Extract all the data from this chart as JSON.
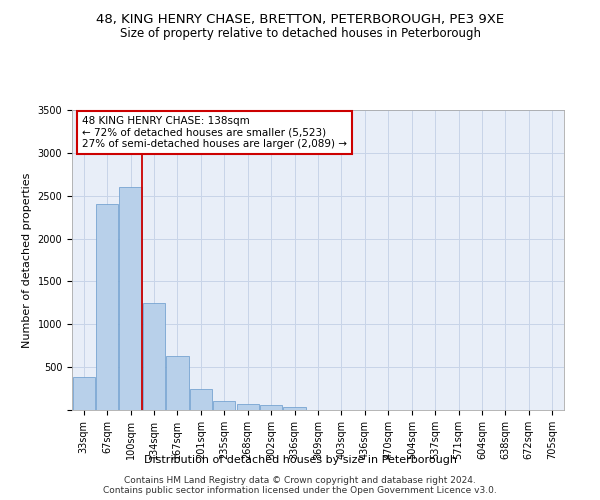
{
  "title_line1": "48, KING HENRY CHASE, BRETTON, PETERBOROUGH, PE3 9XE",
  "title_line2": "Size of property relative to detached houses in Peterborough",
  "xlabel": "Distribution of detached houses by size in Peterborough",
  "ylabel": "Number of detached properties",
  "categories": [
    "33sqm",
    "67sqm",
    "100sqm",
    "134sqm",
    "167sqm",
    "201sqm",
    "235sqm",
    "268sqm",
    "302sqm",
    "336sqm",
    "369sqm",
    "403sqm",
    "436sqm",
    "470sqm",
    "504sqm",
    "537sqm",
    "571sqm",
    "604sqm",
    "638sqm",
    "672sqm",
    "705sqm"
  ],
  "values": [
    380,
    2400,
    2600,
    1250,
    630,
    250,
    100,
    65,
    55,
    40,
    0,
    0,
    0,
    0,
    0,
    0,
    0,
    0,
    0,
    0,
    0
  ],
  "bar_color": "#b8d0ea",
  "bar_edge_color": "#6699cc",
  "vline_x_index": 3.0,
  "annotation_text": "48 KING HENRY CHASE: 138sqm\n← 72% of detached houses are smaller (5,523)\n27% of semi-detached houses are larger (2,089) →",
  "annotation_box_color": "#ffffff",
  "annotation_box_edge": "#cc0000",
  "vline_color": "#cc0000",
  "ylim": [
    0,
    3500
  ],
  "yticks": [
    0,
    500,
    1000,
    1500,
    2000,
    2500,
    3000,
    3500
  ],
  "grid_color": "#c8d4e8",
  "background_color": "#e8eef8",
  "footer": "Contains HM Land Registry data © Crown copyright and database right 2024.\nContains public sector information licensed under the Open Government Licence v3.0.",
  "title_fontsize": 9.5,
  "subtitle_fontsize": 8.5,
  "xlabel_fontsize": 8,
  "ylabel_fontsize": 8,
  "tick_fontsize": 7,
  "annotation_fontsize": 7.5,
  "footer_fontsize": 6.5
}
